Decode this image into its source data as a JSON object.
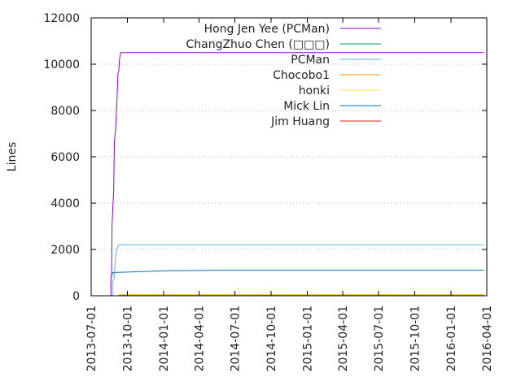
{
  "chart_data": {
    "type": "line",
    "title": "",
    "xlabel": "",
    "ylabel": "Lines",
    "ylim": [
      0,
      12000
    ],
    "yticks": [
      0,
      2000,
      4000,
      6000,
      8000,
      10000,
      12000
    ],
    "xlim": [
      "2013-07-01",
      "2016-04-01"
    ],
    "xticks": [
      "2013-07-01",
      "2013-10-01",
      "2014-01-01",
      "2014-04-01",
      "2014-07-01",
      "2014-10-01",
      "2015-01-01",
      "2015-04-01",
      "2015-07-01",
      "2015-10-01",
      "2016-01-01",
      "2016-04-01"
    ],
    "grid": "horizontal dotted",
    "legend_position": "top-right",
    "series": [
      {
        "name": "Hong Jen Yee (PCMan)",
        "color": "#9400d3",
        "points": [
          [
            "2013-08-20",
            0
          ],
          [
            "2013-08-20",
            700
          ],
          [
            "2013-08-22",
            900
          ],
          [
            "2013-08-23",
            3000
          ],
          [
            "2013-08-25",
            3800
          ],
          [
            "2013-08-27",
            4500
          ],
          [
            "2013-08-29",
            6600
          ],
          [
            "2013-09-01",
            7200
          ],
          [
            "2013-09-04",
            8200
          ],
          [
            "2013-09-07",
            9600
          ],
          [
            "2013-09-09",
            9700
          ],
          [
            "2013-09-11",
            10200
          ],
          [
            "2013-09-14",
            10500
          ],
          [
            "2016-03-25",
            10500
          ]
        ]
      },
      {
        "name": "ChangZhuo Chen (□□□)",
        "color": "#009e73",
        "points": []
      },
      {
        "name": "PCMan",
        "color": "#56b4e9",
        "points": [
          [
            "2013-08-24",
            0
          ],
          [
            "2013-08-24",
            600
          ],
          [
            "2013-08-28",
            700
          ],
          [
            "2013-09-02",
            1900
          ],
          [
            "2013-09-07",
            2150
          ],
          [
            "2013-09-11",
            2200
          ],
          [
            "2016-03-25",
            2200
          ]
        ]
      },
      {
        "name": "Chocobo1",
        "color": "#e69f00",
        "points": [
          [
            "2013-09-10",
            0
          ],
          [
            "2013-09-10",
            30
          ],
          [
            "2015-03-25",
            30
          ],
          [
            "2016-03-25",
            30
          ]
        ]
      },
      {
        "name": "honki",
        "color": "#f0e442",
        "points": [
          [
            "2013-09-10",
            0
          ],
          [
            "2013-09-10",
            50
          ],
          [
            "2016-03-25",
            50
          ]
        ]
      },
      {
        "name": "Mick Lin",
        "color": "#0072b2",
        "points": [
          [
            "2013-08-20",
            800
          ],
          [
            "2013-08-25",
            1000
          ],
          [
            "2013-11-15",
            1050
          ],
          [
            "2014-01-05",
            1080
          ],
          [
            "2014-05-20",
            1100
          ],
          [
            "2016-03-25",
            1100
          ]
        ]
      },
      {
        "name": "Jim Huang",
        "color": "#e51e10",
        "points": [
          [
            "2013-09-10",
            0
          ],
          [
            "2016-03-25",
            0
          ]
        ]
      }
    ]
  }
}
